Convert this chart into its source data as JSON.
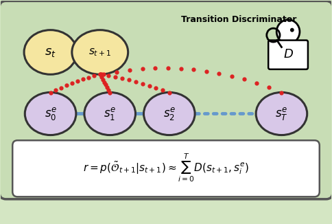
{
  "fig_width": 4.84,
  "fig_height": 3.26,
  "dpi": 100,
  "bg_color": "#d4e6c3",
  "outer_box_color": "#c8ddb5",
  "outer_box_edge": "#555555",
  "formula_box_color": "#ffffff",
  "formula_box_edge": "#555555",
  "yellow_ellipse_color": "#f5e6a0",
  "yellow_ellipse_edge": "#333333",
  "purple_ellipse_color": "#d8c8e8",
  "purple_ellipse_edge": "#333333",
  "blue_line_color": "#6699cc",
  "red_dot_color": "#dd2222",
  "title_text": "Transition Discriminator",
  "formula_text": "$r = p(\\tilde{\\mathcal{O}}_{t+1}|s_{t+1}) \\approx \\sum_{i=0}^{T} D(s_{t+1}, s_i^e)$",
  "st_label": "$\\boldsymbol{s_t}$",
  "st1_label": "$\\boldsymbol{s_{t+1}}$",
  "s0e_label": "$\\boldsymbol{s_0^e}$",
  "s1e_label": "$\\boldsymbol{s_1^e}$",
  "s2e_label": "$\\boldsymbol{s_2^e}$",
  "sT_label": "$\\boldsymbol{s_T^e}$",
  "D_label": "$D$"
}
